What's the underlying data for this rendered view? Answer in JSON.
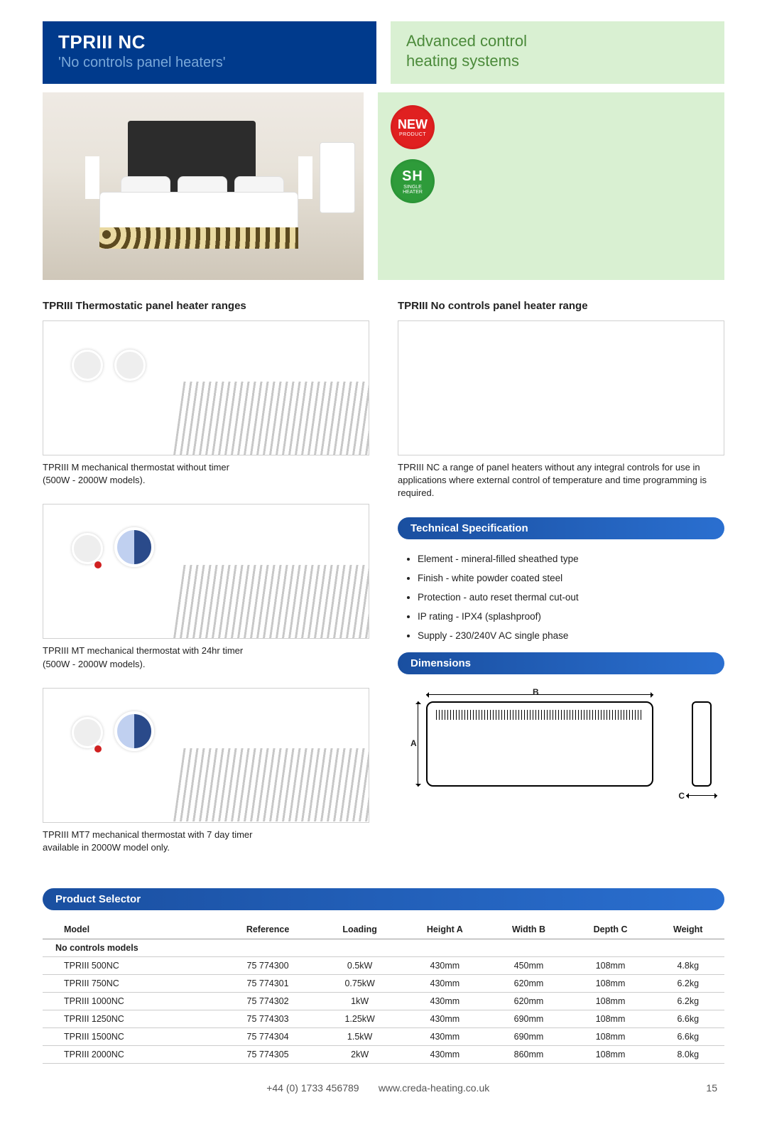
{
  "header": {
    "left_title": "TPRIII NC",
    "left_subtitle": "'No controls panel heaters'",
    "right_title_line1": "Advanced control",
    "right_title_line2": "heating systems",
    "left_bg": "#003a8c",
    "right_bg": "#d9f0d2",
    "right_text_color": "#4b8a3a"
  },
  "badges": {
    "new_big": "NEW",
    "new_small": "PRODUCT",
    "sh_big": "SH",
    "sh_small_line1": "SINGLE",
    "sh_small_line2": "HEATER"
  },
  "left_column": {
    "heading": "TPRIII Thermostatic panel heater ranges",
    "items": [
      {
        "caption_line1": "TPRIII M mechanical thermostat without timer",
        "caption_line2": "(500W - 2000W models).",
        "variant": "m"
      },
      {
        "caption_line1": "TPRIII MT mechanical thermostat with 24hr timer",
        "caption_line2": "(500W - 2000W models).",
        "variant": "mt"
      },
      {
        "caption_line1": "TPRIII MT7 mechanical thermostat with 7 day timer",
        "caption_line2": "available in 2000W model only.",
        "variant": "mt7"
      }
    ]
  },
  "right_column": {
    "heading": "TPRIII No controls panel heater range",
    "description": "TPRIII NC  a range of panel heaters without any integral controls for use in applications where external control of temperature and time programming is required.",
    "tech_spec_title": "Technical Specification",
    "tech_specs": [
      "Element - mineral-filled sheathed type",
      "Finish - white powder coated steel",
      "Protection - auto reset thermal cut-out",
      "IP rating - IPX4 (splashproof)",
      "Supply - 230/240V AC single phase"
    ],
    "dimensions_title": "Dimensions",
    "dim_labels": {
      "A": "A",
      "B": "B",
      "C": "C"
    }
  },
  "product_selector": {
    "title": "Product Selector",
    "columns": [
      "Model",
      "Reference",
      "Loading",
      "Height A",
      "Width B",
      "Depth C",
      "Weight"
    ],
    "subheading": "No controls models",
    "rows": [
      [
        "TPRIII 500NC",
        "75 774300",
        "0.5kW",
        "430mm",
        "450mm",
        "108mm",
        "4.8kg"
      ],
      [
        "TPRIII 750NC",
        "75 774301",
        "0.75kW",
        "430mm",
        "620mm",
        "108mm",
        "6.2kg"
      ],
      [
        "TPRIII 1000NC",
        "75 774302",
        "1kW",
        "430mm",
        "620mm",
        "108mm",
        "6.2kg"
      ],
      [
        "TPRIII 1250NC",
        "75 774303",
        "1.25kW",
        "430mm",
        "690mm",
        "108mm",
        "6.6kg"
      ],
      [
        "TPRIII 1500NC",
        "75 774304",
        "1.5kW",
        "430mm",
        "690mm",
        "108mm",
        "6.6kg"
      ],
      [
        "TPRIII 2000NC",
        "75 774305",
        "2kW",
        "430mm",
        "860mm",
        "108mm",
        "8.0kg"
      ]
    ]
  },
  "footer": {
    "phone": "+44 (0) 1733 456789",
    "url": "www.creda-heating.co.uk",
    "page": "15"
  },
  "colors": {
    "pill_gradient_from": "#1a4fa0",
    "pill_gradient_to": "#2a6fd0"
  }
}
